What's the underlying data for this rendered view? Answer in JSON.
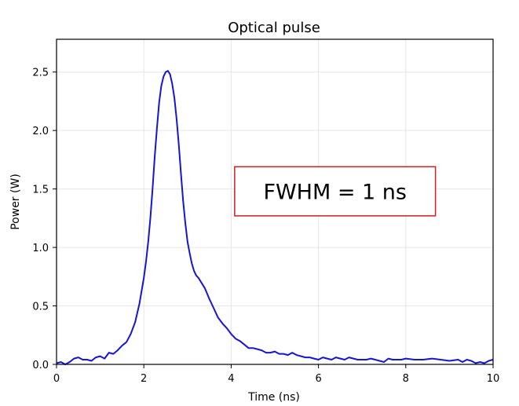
{
  "chart_data": {
    "type": "line",
    "title": "Optical pulse",
    "xlabel": "Time (ns)",
    "ylabel": "Power (W)",
    "xlim": [
      0,
      10
    ],
    "ylim": [
      0,
      2.78
    ],
    "xticks": [
      0,
      2,
      4,
      6,
      8,
      10
    ],
    "xtick_labels": [
      "0",
      "2",
      "4",
      "6",
      "8",
      "10"
    ],
    "yticks": [
      0.0,
      0.5,
      1.0,
      1.5,
      2.0,
      2.5
    ],
    "ytick_labels": [
      "0.0",
      "0.5",
      "1.0",
      "1.5",
      "2.0",
      "2.5"
    ],
    "grid": true,
    "legend": "none",
    "line_color": "#1515d6",
    "annotation": {
      "text": "FWHM = 1 ns",
      "border_color": "#cc1f1f",
      "box_x": [
        4.08,
        8.68
      ],
      "box_y": [
        1.27,
        1.69
      ]
    },
    "series": [
      {
        "x": [
          0,
          0.1,
          0.2,
          0.3,
          0.4,
          0.5,
          0.6,
          0.7,
          0.8,
          0.9,
          1.0,
          1.1,
          1.2,
          1.3,
          1.4,
          1.5,
          1.6,
          1.7,
          1.8,
          1.9,
          2.0,
          2.05,
          2.1,
          2.15,
          2.2,
          2.25,
          2.3,
          2.35,
          2.4,
          2.45,
          2.5,
          2.55,
          2.6,
          2.65,
          2.7,
          2.75,
          2.8,
          2.85,
          2.9,
          2.95,
          3.0,
          3.05,
          3.1,
          3.15,
          3.2,
          3.25,
          3.3,
          3.4,
          3.5,
          3.6,
          3.7,
          3.8,
          3.9,
          4.0,
          4.1,
          4.2,
          4.3,
          4.4,
          4.5,
          4.6,
          4.7,
          4.8,
          4.9,
          5.0,
          5.1,
          5.2,
          5.3,
          5.4,
          5.5,
          5.6,
          5.7,
          5.8,
          5.9,
          6.0,
          6.1,
          6.2,
          6.3,
          6.4,
          6.5,
          6.6,
          6.7,
          6.8,
          6.9,
          7.0,
          7.1,
          7.2,
          7.3,
          7.4,
          7.5,
          7.6,
          7.7,
          7.8,
          7.9,
          8.0,
          8.2,
          8.4,
          8.6,
          8.8,
          9.0,
          9.2,
          9.3,
          9.4,
          9.5,
          9.6,
          9.7,
          9.8,
          9.9,
          10.0
        ],
        "y": [
          0.01,
          0.02,
          0.0,
          0.02,
          0.05,
          0.06,
          0.04,
          0.04,
          0.03,
          0.06,
          0.07,
          0.05,
          0.1,
          0.09,
          0.12,
          0.16,
          0.19,
          0.26,
          0.36,
          0.52,
          0.74,
          0.88,
          1.05,
          1.25,
          1.5,
          1.78,
          2.02,
          2.24,
          2.38,
          2.46,
          2.5,
          2.51,
          2.48,
          2.4,
          2.28,
          2.1,
          1.88,
          1.63,
          1.4,
          1.21,
          1.05,
          0.95,
          0.86,
          0.8,
          0.76,
          0.74,
          0.71,
          0.65,
          0.56,
          0.48,
          0.4,
          0.35,
          0.31,
          0.26,
          0.22,
          0.2,
          0.17,
          0.14,
          0.14,
          0.13,
          0.12,
          0.1,
          0.1,
          0.11,
          0.09,
          0.09,
          0.08,
          0.1,
          0.08,
          0.07,
          0.06,
          0.06,
          0.05,
          0.04,
          0.06,
          0.05,
          0.04,
          0.06,
          0.05,
          0.04,
          0.06,
          0.05,
          0.04,
          0.04,
          0.04,
          0.05,
          0.04,
          0.03,
          0.02,
          0.05,
          0.04,
          0.04,
          0.04,
          0.05,
          0.04,
          0.04,
          0.05,
          0.04,
          0.03,
          0.04,
          0.02,
          0.04,
          0.03,
          0.01,
          0.02,
          0.01,
          0.03,
          0.04
        ]
      }
    ]
  }
}
